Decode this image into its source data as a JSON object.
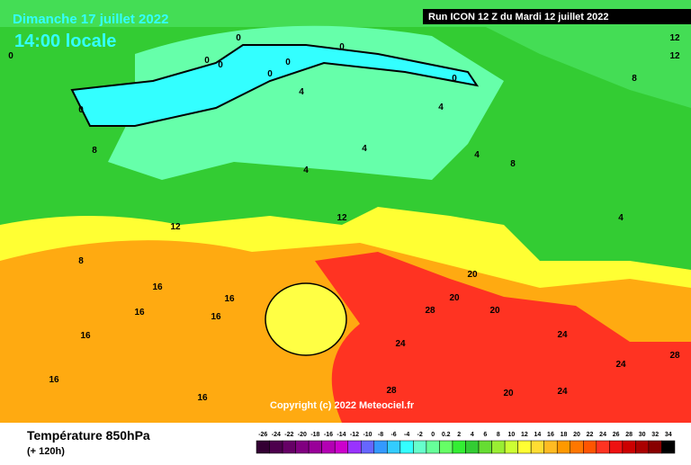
{
  "header": {
    "title": "Dimanche 17 juillet 2022",
    "time": "14:00 locale",
    "run": "Run ICON 12 Z du Mardi 12 juillet 2022"
  },
  "copyright": "Copyright (c) 2022 Meteociel.fr",
  "footer": {
    "title": "Température 850hPa",
    "subtitle": "(+ 120h)"
  },
  "colorbar": {
    "ticks": [
      -26,
      -24,
      -22,
      -20,
      -18,
      -16,
      -14,
      -12,
      -10,
      -8,
      -6,
      -4,
      -2,
      0,
      0.2,
      2,
      4,
      6,
      8,
      10,
      12,
      14,
      16,
      18,
      20,
      22,
      24,
      26,
      28,
      30,
      32,
      34
    ],
    "colors": [
      "#330033",
      "#4d004d",
      "#660066",
      "#800080",
      "#990099",
      "#b300b3",
      "#cc00cc",
      "#9933ff",
      "#6666ff",
      "#3399ff",
      "#33ccff",
      "#33ffff",
      "#66ffcc",
      "#66ff99",
      "#66ff66",
      "#33ee33",
      "#33cc33",
      "#66dd33",
      "#99ee33",
      "#ccff33",
      "#ffff33",
      "#ffdd33",
      "#ffbb22",
      "#ff9900",
      "#ff7700",
      "#ff5500",
      "#ff3322",
      "#ee1111",
      "#cc0000",
      "#aa0000",
      "#880000",
      "#000000"
    ]
  },
  "contour_labels": [
    0,
    0,
    0,
    0,
    0,
    0,
    0,
    0,
    0,
    4,
    4,
    4,
    4,
    4,
    4,
    8,
    8,
    8,
    8,
    12,
    12,
    12,
    12,
    16,
    16,
    16,
    16,
    16,
    16,
    20,
    20,
    20,
    24,
    24,
    24,
    28,
    28,
    28,
    24,
    20,
    16
  ]
}
